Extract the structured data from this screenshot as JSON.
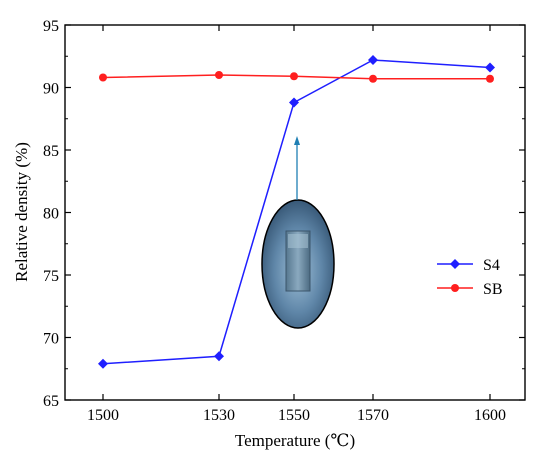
{
  "chart_data": {
    "type": "line",
    "xlabel": "Temperature (℃)",
    "ylabel": "Relative density (%)",
    "categories": [
      "1500",
      "1530",
      "1550",
      "1570",
      "1600"
    ],
    "ylim": [
      65,
      95
    ],
    "yticks": [
      65,
      70,
      75,
      80,
      85,
      90,
      95
    ],
    "grid": false,
    "legend_position": "right",
    "series": [
      {
        "name": "S4",
        "color": "#1f1fff",
        "marker": "diamond",
        "values": [
          67.9,
          68.5,
          88.8,
          92.2,
          91.6
        ]
      },
      {
        "name": "SB",
        "color": "#ff1f1f",
        "marker": "circle",
        "values": [
          90.8,
          91.0,
          90.9,
          90.7,
          90.7
        ]
      }
    ],
    "annotations": [
      {
        "type": "inset-photo",
        "description_icon": "specimen-photo-icon",
        "points_to_category": "1550",
        "points_to_series": "S4",
        "color": "#1f7fb4"
      }
    ]
  }
}
